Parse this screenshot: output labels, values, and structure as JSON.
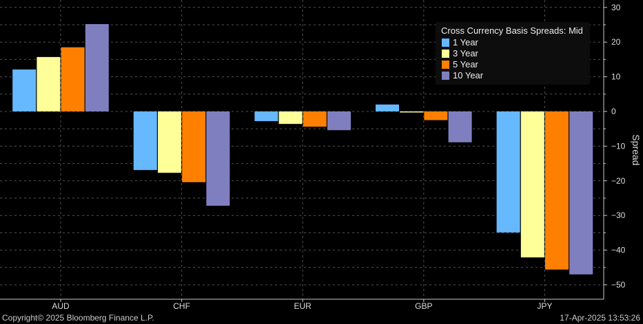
{
  "chart_data": {
    "type": "bar",
    "title": "Cross Currency Basis Spreads: Mid",
    "categories": [
      "AUD",
      "CHF",
      "EUR",
      "GBP",
      "JPY"
    ],
    "series": [
      {
        "name": "1 Year",
        "color": "#66b8ff",
        "values": [
          12.1,
          -16.9,
          -2.8,
          2.0,
          -34.9
        ]
      },
      {
        "name": "3 Year",
        "color": "#ffff99",
        "values": [
          15.7,
          -17.7,
          -3.6,
          -0.1,
          -42.1
        ]
      },
      {
        "name": "5 Year",
        "color": "#ff8000",
        "values": [
          18.5,
          -20.4,
          -4.4,
          -2.5,
          -45.6
        ]
      },
      {
        "name": "10 Year",
        "color": "#7f7fc0",
        "values": [
          25.2,
          -27.2,
          -5.4,
          -8.9,
          -47.0
        ]
      }
    ],
    "xlabel": "",
    "ylabel": "Spread",
    "ylim": [
      -52,
      31
    ],
    "yticks": [
      30,
      20,
      10,
      0,
      -10,
      -20,
      -30,
      -40,
      -50
    ],
    "grid": true,
    "legend_position": "top-right"
  },
  "footer": {
    "copyright": "Copyright© 2025 Bloomberg Finance L.P.",
    "timestamp": "17-Apr-2025 13:53:26"
  }
}
